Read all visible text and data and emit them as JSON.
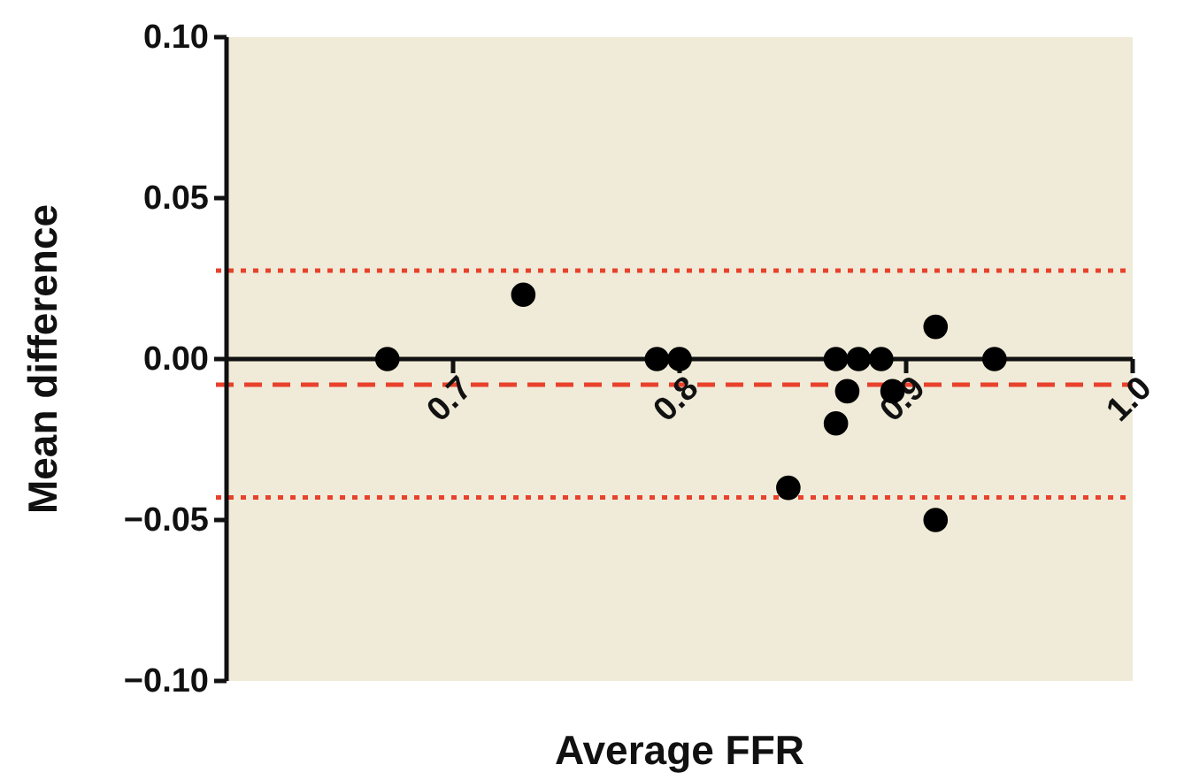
{
  "chart_data": {
    "type": "scatter",
    "xlabel": "Average FFR",
    "ylabel": "Mean difference",
    "xlim": [
      0.6,
      1.0
    ],
    "ylim": [
      -0.1,
      0.1
    ],
    "xticks": [
      0.7,
      0.8,
      0.9,
      {
        "value": 1.0,
        "label": "1.0"
      }
    ],
    "yticks": [
      {
        "value": -0.1,
        "label": "−0.10"
      },
      {
        "value": -0.05,
        "label": "−0.05"
      },
      {
        "value": 0,
        "label": "0.00"
      },
      {
        "value": 0.05,
        "label": "0.05"
      },
      {
        "value": 0.1,
        "label": "0.10"
      }
    ],
    "series": [
      {
        "color": "#000000",
        "x": [
          0.671,
          0.731,
          0.79,
          0.8,
          0.848,
          0.869,
          0.869,
          0.874,
          0.879,
          0.889,
          0.894,
          0.913,
          0.913,
          0.939
        ],
        "values": [
          0,
          0.02,
          0,
          0,
          -0.04,
          -0.02,
          0,
          -0.01,
          0,
          0,
          -0.01,
          0.01,
          -0.05,
          0
        ]
      }
    ],
    "ref_lines": [
      {
        "axis": "y",
        "value": 0.0275,
        "color": "#e8412c",
        "line_style": "dotted"
      },
      {
        "axis": "y",
        "value": -0.008,
        "color": "#e8412c",
        "line_style": "dashed"
      },
      {
        "axis": "y",
        "value": -0.043,
        "color": "#e8412c",
        "line_style": "dotted"
      }
    ],
    "marker": "circle",
    "grid": false
  }
}
